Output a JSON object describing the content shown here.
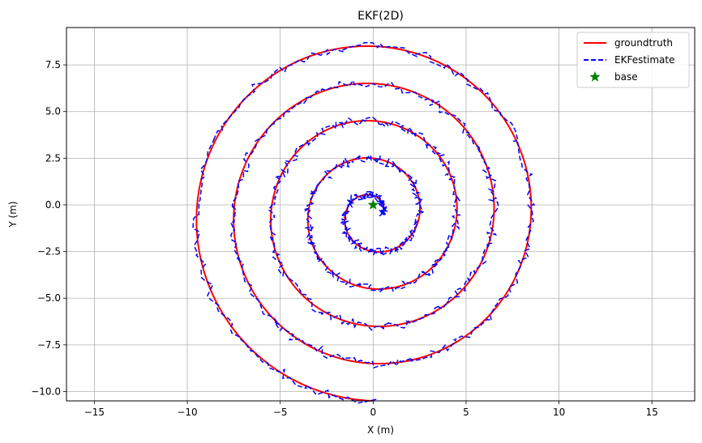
{
  "chart_data": {
    "type": "line",
    "title": "EKF(2D)",
    "xlabel": "X (m)",
    "ylabel": "Y (m)",
    "xlim": [
      -16.5,
      17.3
    ],
    "ylim": [
      -10.5,
      9.5
    ],
    "xticks": [
      -15,
      -10,
      -5,
      0,
      5,
      10,
      15
    ],
    "xtick_labels": [
      "−15",
      "−10",
      "−5",
      "0",
      "5",
      "10",
      "15"
    ],
    "yticks": [
      -10.0,
      -7.5,
      -5.0,
      -2.5,
      0.0,
      2.5,
      5.0,
      7.5
    ],
    "ytick_labels": [
      "−10.0",
      "−7.5",
      "−5.0",
      "−2.5",
      "0.0",
      "2.5",
      "5.0",
      "7.5"
    ],
    "grid": true,
    "legend_position": "top-right",
    "series": [
      {
        "name": "groundtruth",
        "style": "solid",
        "color": "#ff0000",
        "curve": "spiral",
        "center": [
          0,
          -0.5
        ],
        "start_radius": 0.5,
        "end_radius": 10.0,
        "turns": 4.75
      },
      {
        "name": "EKFestimate",
        "style": "dashed",
        "color": "#0000ff",
        "curve": "noisy spiral",
        "center": [
          0,
          -0.5
        ],
        "start_radius": 0.5,
        "end_radius": 10.0,
        "turns": 4.75
      },
      {
        "name": "base",
        "style": "marker",
        "marker": "star",
        "color": "#008000",
        "x": [
          0
        ],
        "y": [
          0
        ]
      }
    ]
  }
}
